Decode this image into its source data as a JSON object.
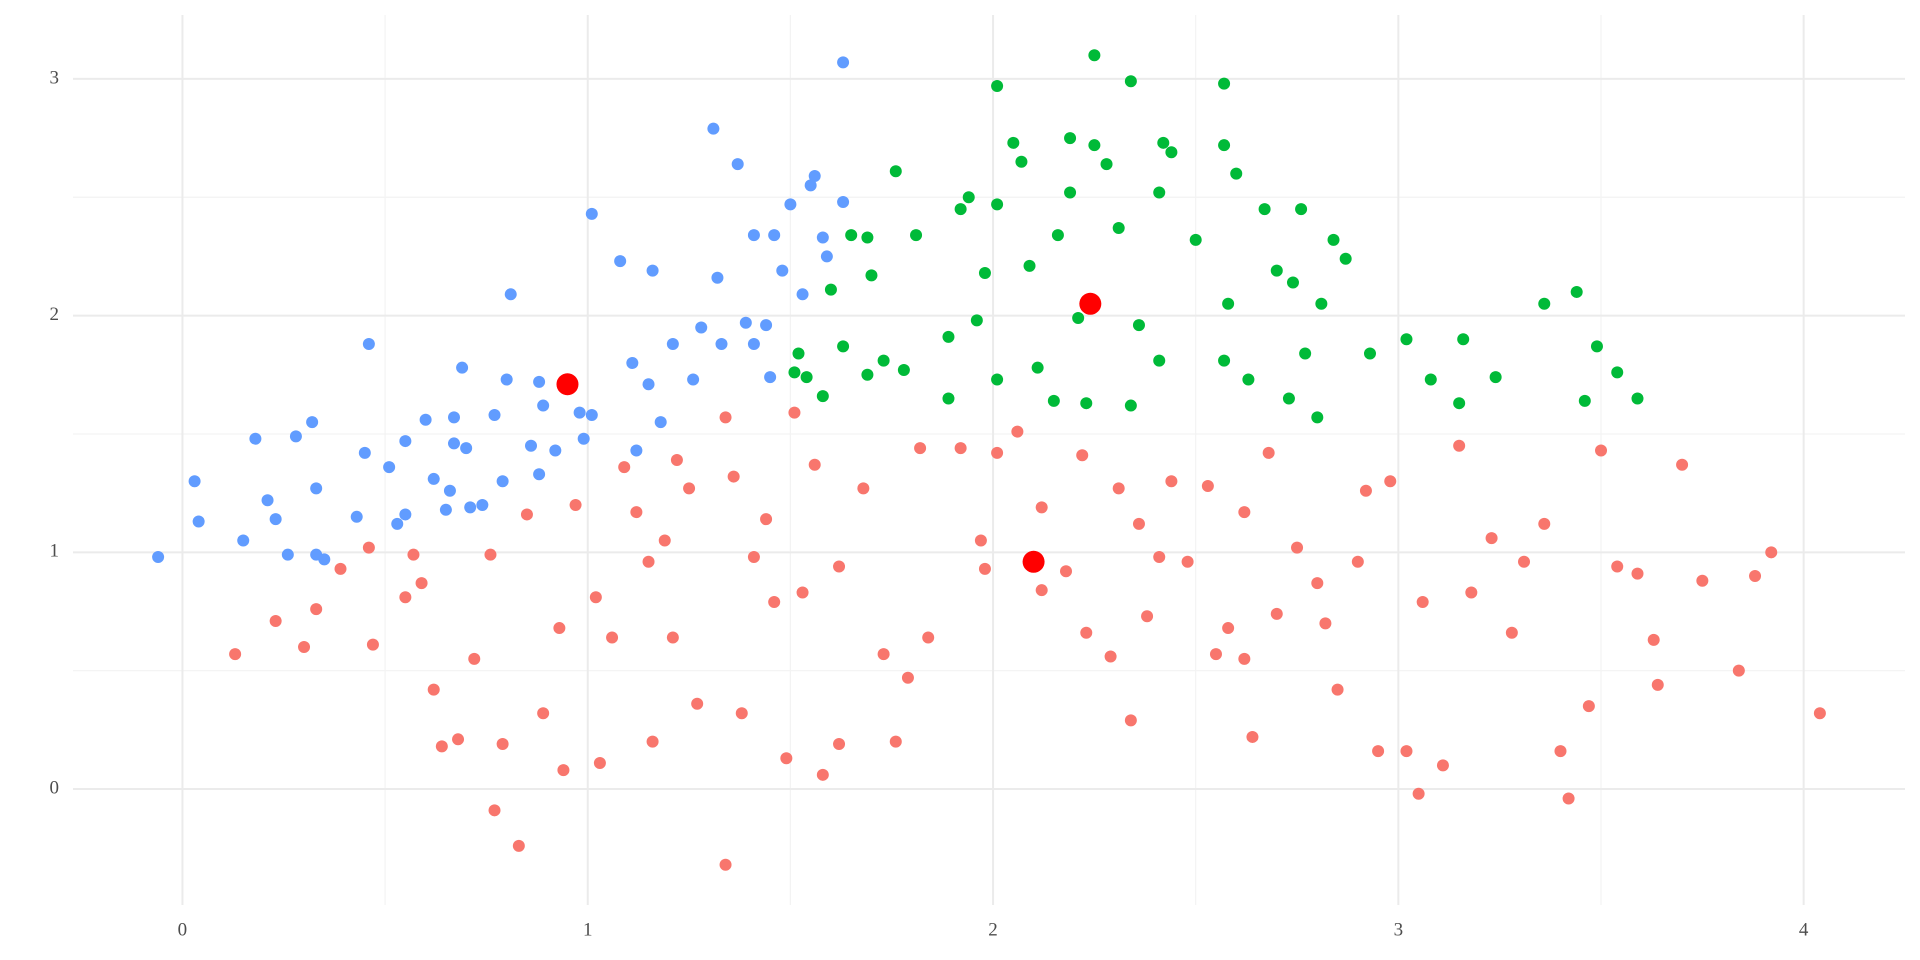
{
  "chart_data": {
    "type": "scatter",
    "xlim": [
      -0.27,
      4.25
    ],
    "ylim": [
      -0.49,
      3.27
    ],
    "xticks": [
      0,
      1,
      2,
      3,
      4
    ],
    "yticks": [
      0,
      1,
      2,
      3
    ],
    "x_minor_grid": [
      0.5,
      1.5,
      2.5,
      3.5
    ],
    "y_minor_grid": [
      0.5,
      1.5,
      2.5
    ],
    "grid": true,
    "series": [
      {
        "color": "#F8766D",
        "marker_size": 6,
        "x": [
          0.13,
          0.23,
          0.3,
          0.33,
          0.39,
          0.46,
          0.47,
          0.55,
          0.57,
          0.59,
          0.62,
          0.64,
          0.68,
          0.72,
          0.76,
          0.77,
          0.79,
          0.83,
          0.85,
          0.89,
          0.93,
          0.94,
          0.97,
          1.02,
          1.03,
          1.06,
          1.09,
          1.12,
          1.15,
          1.16,
          1.19,
          1.21,
          1.22,
          1.25,
          1.27,
          1.34,
          1.34,
          1.36,
          1.38,
          1.41,
          1.44,
          1.46,
          1.49,
          1.51,
          1.53,
          1.56,
          1.58,
          1.62,
          1.62,
          1.68,
          1.73,
          1.76,
          1.79,
          1.82,
          1.84,
          1.92,
          1.97,
          1.98,
          2.01,
          2.06,
          2.12,
          2.12,
          2.18,
          2.22,
          2.23,
          2.29,
          2.31,
          2.34,
          2.36,
          2.38,
          2.41,
          2.44,
          2.48,
          2.53,
          2.55,
          2.58,
          2.62,
          2.64,
          2.68,
          2.7,
          2.75,
          2.8,
          2.85,
          2.9,
          2.95,
          2.98,
          3.02,
          3.05,
          3.06,
          3.11,
          3.15,
          3.18,
          3.23,
          3.28,
          3.36,
          3.4,
          3.42,
          3.47,
          3.5,
          3.54,
          3.59,
          3.64,
          3.7,
          3.75,
          3.84,
          3.88,
          3.92,
          4.04,
          3.31,
          2.92,
          2.62,
          2.82,
          3.63
        ],
        "y": [
          0.57,
          0.71,
          0.6,
          0.76,
          0.93,
          1.02,
          0.61,
          0.81,
          0.99,
          0.87,
          0.42,
          0.18,
          0.21,
          0.55,
          0.99,
          -0.09,
          0.19,
          -0.24,
          1.16,
          0.32,
          0.68,
          0.08,
          1.2,
          0.81,
          0.11,
          0.64,
          1.36,
          1.17,
          0.96,
          0.2,
          1.05,
          0.64,
          1.39,
          1.27,
          0.36,
          1.57,
          -0.32,
          1.32,
          0.32,
          0.98,
          1.14,
          0.79,
          0.13,
          1.59,
          0.83,
          1.37,
          0.06,
          0.94,
          0.19,
          1.27,
          0.57,
          0.2,
          0.47,
          1.44,
          0.64,
          1.44,
          1.05,
          0.93,
          1.42,
          1.51,
          1.19,
          0.84,
          0.92,
          1.41,
          0.66,
          0.56,
          1.27,
          0.29,
          1.12,
          0.73,
          0.98,
          1.3,
          0.96,
          1.28,
          0.57,
          0.68,
          0.55,
          0.22,
          1.42,
          0.74,
          1.02,
          0.87,
          0.42,
          0.96,
          0.16,
          1.3,
          0.16,
          -0.02,
          0.79,
          0.1,
          1.45,
          0.83,
          1.06,
          0.66,
          1.12,
          0.16,
          -0.04,
          0.35,
          1.43,
          0.94,
          0.91,
          0.44,
          1.37,
          0.88,
          0.5,
          0.9,
          1.0,
          0.32,
          0.96,
          1.26,
          1.17,
          0.7,
          0.63
        ]
      },
      {
        "color": "#619CFF",
        "marker_size": 6,
        "x": [
          -0.06,
          0.03,
          0.04,
          0.15,
          0.18,
          0.21,
          0.23,
          0.26,
          0.28,
          0.32,
          0.33,
          0.33,
          0.35,
          0.43,
          0.45,
          0.46,
          0.51,
          0.53,
          0.55,
          0.55,
          0.6,
          0.62,
          0.65,
          0.66,
          0.67,
          0.67,
          0.69,
          0.7,
          0.71,
          0.74,
          0.77,
          0.79,
          0.8,
          0.81,
          0.86,
          0.88,
          0.88,
          0.89,
          0.92,
          0.98,
          0.99,
          1.01,
          1.01,
          1.08,
          1.11,
          1.12,
          1.15,
          1.16,
          1.18,
          1.21,
          1.26,
          1.28,
          1.31,
          1.32,
          1.33,
          1.37,
          1.39,
          1.41,
          1.41,
          1.44,
          1.45,
          1.46,
          1.48,
          1.5,
          1.53,
          1.55,
          1.56,
          1.58,
          1.59,
          1.63,
          1.63
        ],
        "y": [
          0.98,
          1.3,
          1.13,
          1.05,
          1.48,
          1.22,
          1.14,
          0.99,
          1.49,
          1.55,
          1.27,
          0.99,
          0.97,
          1.15,
          1.42,
          1.88,
          1.36,
          1.12,
          1.47,
          1.16,
          1.56,
          1.31,
          1.18,
          1.26,
          1.57,
          1.46,
          1.78,
          1.44,
          1.19,
          1.2,
          1.58,
          1.3,
          1.73,
          2.09,
          1.45,
          1.72,
          1.33,
          1.62,
          1.43,
          1.59,
          1.48,
          2.43,
          1.58,
          2.23,
          1.8,
          1.43,
          1.71,
          2.19,
          1.55,
          1.88,
          1.73,
          1.95,
          2.79,
          2.16,
          1.88,
          2.64,
          1.97,
          2.34,
          1.88,
          1.96,
          1.74,
          2.34,
          2.19,
          2.47,
          2.09,
          2.55,
          2.59,
          2.33,
          2.25,
          3.07,
          2.48
        ]
      },
      {
        "color": "#00BA38",
        "marker_size": 6,
        "x": [
          2.01,
          2.25,
          2.34,
          2.57,
          2.05,
          2.07,
          2.19,
          2.25,
          2.42,
          2.44,
          2.57,
          2.6,
          2.28,
          1.76,
          1.94,
          2.01,
          2.19,
          2.41,
          2.67,
          2.76,
          1.81,
          1.92,
          2.16,
          2.31,
          2.5,
          2.84,
          2.87,
          2.7,
          2.74,
          2.81,
          2.58,
          1.65,
          1.69,
          1.7,
          1.6,
          1.52,
          1.51,
          1.54,
          1.58,
          1.63,
          1.69,
          1.73,
          1.78,
          1.89,
          1.96,
          2.01,
          2.11,
          1.98,
          2.09,
          1.89,
          2.15,
          2.23,
          2.34,
          2.41,
          2.57,
          2.63,
          2.77,
          2.73,
          2.8,
          2.93,
          3.02,
          3.08,
          3.16,
          3.24,
          3.36,
          3.44,
          3.49,
          3.54,
          3.59,
          3.46,
          3.15,
          2.36,
          2.21
        ],
        "y": [
          2.97,
          3.1,
          2.99,
          2.98,
          2.73,
          2.65,
          2.75,
          2.72,
          2.73,
          2.69,
          2.72,
          2.6,
          2.64,
          2.61,
          2.5,
          2.47,
          2.52,
          2.52,
          2.45,
          2.45,
          2.34,
          2.45,
          2.34,
          2.37,
          2.32,
          2.32,
          2.24,
          2.19,
          2.14,
          2.05,
          2.05,
          2.34,
          2.33,
          2.17,
          2.11,
          1.84,
          1.76,
          1.74,
          1.66,
          1.87,
          1.75,
          1.81,
          1.77,
          1.91,
          1.98,
          1.73,
          1.78,
          2.18,
          2.21,
          1.65,
          1.64,
          1.63,
          1.62,
          1.81,
          1.81,
          1.73,
          1.84,
          1.65,
          1.57,
          1.84,
          1.9,
          1.73,
          1.9,
          1.74,
          2.05,
          2.1,
          1.87,
          1.76,
          1.65,
          1.64,
          1.63,
          1.96,
          1.99
        ]
      },
      {
        "color": "#FF0000",
        "marker_size": 11,
        "x": [
          0.95,
          2.1,
          2.24
        ],
        "y": [
          1.71,
          0.96,
          2.05
        ]
      }
    ]
  }
}
